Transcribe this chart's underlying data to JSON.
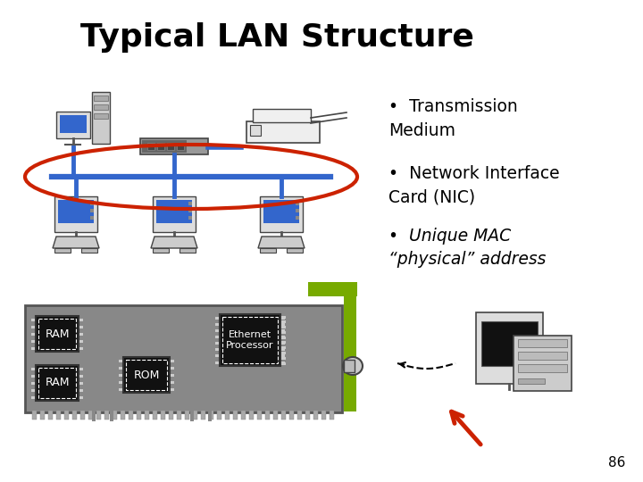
{
  "title": "Typical LAN Structure",
  "title_fontsize": 26,
  "bg_color": "#ffffff",
  "page_number": "86",
  "bullet_points": [
    "Transmission\nMedium",
    "Network Interface\nCard (NIC)",
    "Unique MAC\n“physical” address"
  ],
  "bullet_italic": [
    false,
    false,
    true
  ],
  "bullet_fontsize": 13.5,
  "bus_color": "#3366cc",
  "ellipse_color": "#cc2200",
  "board_color": "#888888",
  "chip_color": "#111111",
  "green_color": "#77aa00",
  "red_arrow_color": "#cc2200"
}
